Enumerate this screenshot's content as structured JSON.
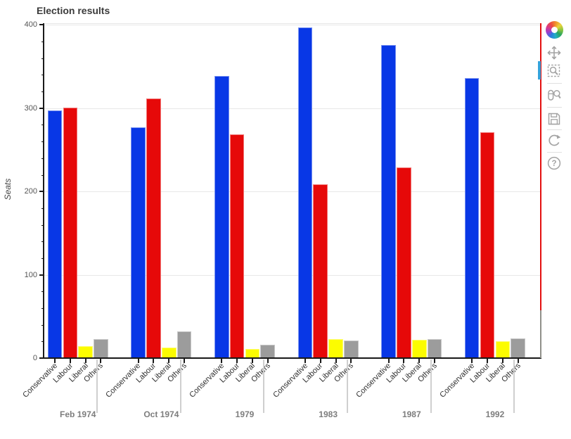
{
  "chart_data": {
    "type": "bar",
    "title": "Election results",
    "ylabel": "Seats",
    "xlabel": "",
    "groups": [
      "Feb 1974",
      "Oct 1974",
      "1979",
      "1983",
      "1987",
      "1992"
    ],
    "categories_per_group": [
      "Conservative",
      "Labour",
      "Liberal",
      "Others"
    ],
    "series": [
      {
        "name": "Conservative",
        "color": "#0837e6",
        "values": [
          297,
          277,
          339,
          397,
          376,
          336
        ]
      },
      {
        "name": "Labour",
        "color": "#e60909",
        "values": [
          301,
          312,
          269,
          209,
          229,
          271
        ]
      },
      {
        "name": "Liberal",
        "color": "#fcfc00",
        "values": [
          14,
          13,
          11,
          23,
          22,
          20
        ]
      },
      {
        "name": "Others",
        "color": "#9c9c9c",
        "values": [
          23,
          32,
          16,
          21,
          23,
          24
        ]
      }
    ],
    "ylim": [
      0,
      400
    ],
    "yticks": [
      0,
      100,
      200,
      300,
      400
    ],
    "grid": "horizontal-major-gridlines",
    "legend": "none",
    "right_edge_clipped_bar": {
      "top_color": "#e30f0f",
      "bottom_color": "#90908a"
    }
  },
  "toolbar": {
    "active_tool": "box-zoom",
    "active_color": "#35a2da",
    "tools": [
      {
        "name": "bokeh-logo"
      },
      {
        "name": "pan"
      },
      {
        "name": "box-zoom"
      },
      {
        "name": "wheel-zoom"
      },
      {
        "name": "save"
      },
      {
        "name": "reset"
      },
      {
        "name": "help"
      }
    ]
  }
}
